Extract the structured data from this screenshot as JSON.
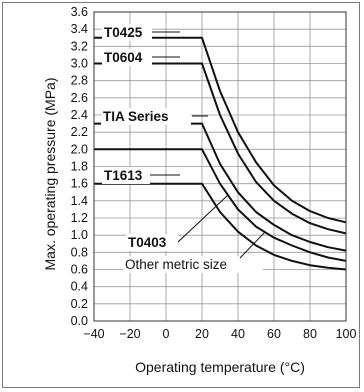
{
  "chart_data": {
    "type": "line",
    "xlabel": "Operating temperature (°C)",
    "ylabel": "Max. operating pressure (MPa)",
    "xlim": [
      -40,
      100
    ],
    "ylim": [
      0,
      3.6
    ],
    "x_ticks": [
      "−40",
      "−20",
      "0",
      "20",
      "40",
      "60",
      "80",
      "100"
    ],
    "y_ticks": [
      "0.0",
      "0.2",
      "0.4",
      "0.6",
      "0.8",
      "1.0",
      "1.2",
      "1.4",
      "1.6",
      "1.8",
      "2.0",
      "2.2",
      "2.4",
      "2.6",
      "2.8",
      "3.0",
      "3.2",
      "3.4",
      "3.6"
    ],
    "grid": true,
    "series": [
      {
        "name": "T0425",
        "x": [
          -40,
          20,
          30,
          40,
          50,
          60,
          70,
          80,
          90,
          100
        ],
        "y": [
          3.3,
          3.3,
          2.68,
          2.2,
          1.85,
          1.58,
          1.4,
          1.28,
          1.2,
          1.15
        ]
      },
      {
        "name": "T0604",
        "x": [
          -40,
          20,
          30,
          40,
          50,
          60,
          70,
          80,
          90,
          100
        ],
        "y": [
          3.0,
          3.0,
          2.4,
          1.95,
          1.62,
          1.4,
          1.25,
          1.14,
          1.07,
          1.02
        ]
      },
      {
        "name": "TIA Series",
        "x": [
          -40,
          20,
          30,
          40,
          50,
          60,
          70,
          80,
          90,
          100
        ],
        "y": [
          2.3,
          2.3,
          1.83,
          1.5,
          1.27,
          1.12,
          1.0,
          0.92,
          0.86,
          0.82
        ]
      },
      {
        "name": "T1613",
        "x": [
          -40,
          20,
          30,
          40,
          50,
          60,
          70,
          80,
          90,
          100
        ],
        "y": [
          2.0,
          2.0,
          1.6,
          1.3,
          1.1,
          0.97,
          0.88,
          0.8,
          0.74,
          0.7
        ]
      },
      {
        "name": "T0403 / Other metric size",
        "x": [
          -40,
          20,
          30,
          40,
          50,
          60,
          70,
          80,
          90,
          100
        ],
        "y": [
          1.6,
          1.6,
          1.27,
          1.04,
          0.88,
          0.77,
          0.7,
          0.65,
          0.62,
          0.6
        ]
      }
    ],
    "labels": [
      "T0425",
      "T0604",
      "TIA Series",
      "T1613",
      "T0403",
      "Other metric size"
    ]
  }
}
